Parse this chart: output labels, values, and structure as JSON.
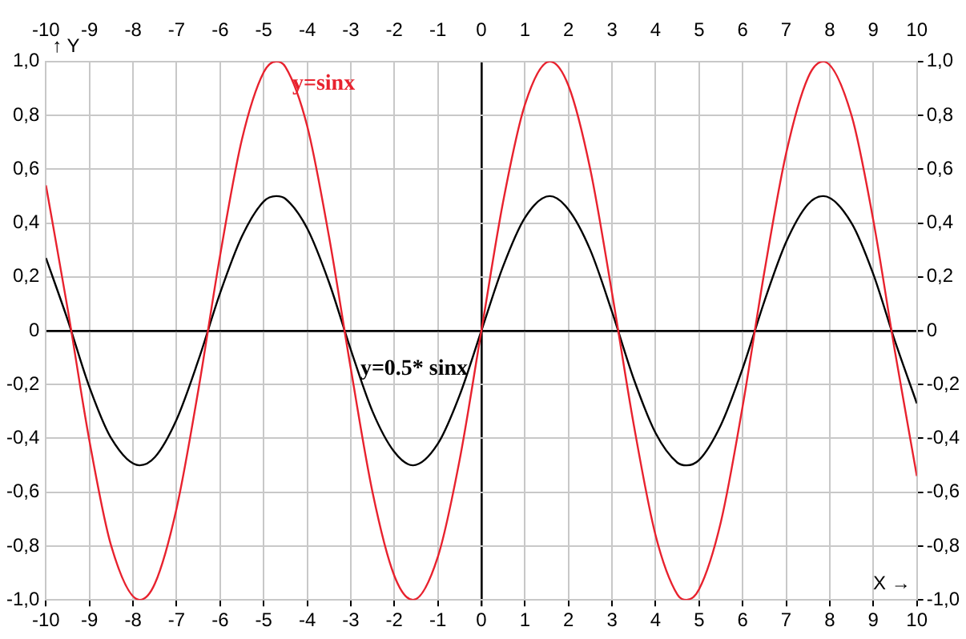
{
  "chart_data": {
    "type": "line",
    "xlabel": "X →",
    "ylabel": "↑ Y",
    "series": [
      {
        "name": "y=sinx",
        "color": "#e8222e",
        "x": [
          -10,
          -9.5,
          -9,
          -8.5,
          -7.85,
          -7.5,
          -7,
          -6.5,
          -6,
          -5.5,
          -5,
          -4.71,
          -4.5,
          -4,
          -3.5,
          -3,
          -2.5,
          -2,
          -1.57,
          -1,
          -0.5,
          0,
          0.5,
          1,
          1.57,
          2,
          2.5,
          3,
          3.5,
          4,
          4.5,
          4.71,
          5,
          5.5,
          6,
          6.5,
          7,
          7.5,
          7.85,
          8.5,
          9,
          9.5,
          10
        ],
        "values": [
          0.54,
          0.08,
          -0.41,
          -0.8,
          -1,
          -0.94,
          -0.66,
          -0.22,
          0.28,
          0.71,
          0.96,
          1,
          0.98,
          0.76,
          0.35,
          -0.14,
          -0.6,
          -0.91,
          -1,
          -0.84,
          -0.48,
          0,
          0.48,
          0.84,
          1,
          0.91,
          0.6,
          0.14,
          -0.35,
          -0.76,
          -0.98,
          -1,
          -0.96,
          -0.71,
          -0.28,
          0.22,
          0.66,
          0.94,
          1,
          0.8,
          0.41,
          -0.08,
          -0.54
        ]
      },
      {
        "name": "y=0.5* sinx",
        "color": "#000000",
        "x": [
          -10,
          -9.5,
          -9,
          -8.5,
          -7.85,
          -7.5,
          -7,
          -6.5,
          -6,
          -5.5,
          -5,
          -4.71,
          -4.5,
          -4,
          -3.5,
          -3,
          -2.5,
          -2,
          -1.57,
          -1,
          -0.5,
          0,
          0.5,
          1,
          1.57,
          2,
          2.5,
          3,
          3.5,
          4,
          4.5,
          4.71,
          5,
          5.5,
          6,
          6.5,
          7,
          7.5,
          7.85,
          8.5,
          9,
          9.5,
          10
        ],
        "values": [
          0.27,
          0.04,
          -0.21,
          -0.4,
          -0.5,
          -0.47,
          -0.33,
          -0.11,
          0.14,
          0.35,
          0.48,
          0.5,
          0.49,
          0.38,
          0.18,
          -0.07,
          -0.3,
          -0.45,
          -0.5,
          -0.42,
          -0.24,
          0,
          0.24,
          0.42,
          0.5,
          0.45,
          0.3,
          0.07,
          -0.18,
          -0.38,
          -0.49,
          -0.5,
          -0.48,
          -0.35,
          -0.14,
          0.11,
          0.33,
          0.47,
          0.5,
          0.4,
          0.21,
          -0.04,
          -0.27
        ]
      }
    ],
    "xlim": [
      -10,
      10
    ],
    "xticks": [
      -10,
      -9,
      -8,
      -7,
      -6,
      -5,
      -4,
      -3,
      -2,
      -1,
      0,
      1,
      2,
      3,
      4,
      5,
      6,
      7,
      8,
      9,
      10
    ],
    "x2lim": [
      -10,
      10
    ],
    "x2ticks": [
      -10,
      -9,
      -8,
      -7,
      -6,
      -5,
      -4,
      -3,
      -2,
      -1,
      0,
      1,
      2,
      3,
      4,
      5,
      6,
      7,
      8,
      9,
      10
    ],
    "ylim": [
      -1,
      1
    ],
    "yticks": [
      {
        "value": -1,
        "label": "-1,0"
      },
      {
        "value": -0.8,
        "label": "-0,8"
      },
      {
        "value": -0.6,
        "label": "-0,6"
      },
      {
        "value": -0.4,
        "label": "-0,4"
      },
      {
        "value": -0.2,
        "label": "-0,2"
      },
      0,
      {
        "value": 0.2,
        "label": "0,2"
      },
      {
        "value": 0.4,
        "label": "0,4"
      },
      {
        "value": 0.6,
        "label": "0,6"
      },
      {
        "value": 0.8,
        "label": "0,8"
      },
      {
        "value": 1,
        "label": "1,0"
      }
    ],
    "y2lim": [
      -1,
      1
    ],
    "y2ticks": [
      {
        "value": -1,
        "label": "-1,0"
      },
      {
        "value": -0.8,
        "label": "-0,8"
      },
      {
        "value": -0.6,
        "label": "-0,6"
      },
      {
        "value": -0.4,
        "label": "-0,4"
      },
      {
        "value": -0.2,
        "label": "-0,2"
      },
      0,
      {
        "value": 0.2,
        "label": "0,2"
      },
      {
        "value": 0.4,
        "label": "0,4"
      },
      {
        "value": 0.6,
        "label": "0,6"
      },
      {
        "value": 0.8,
        "label": "0,8"
      },
      {
        "value": 1,
        "label": "1,0"
      }
    ],
    "grid": true,
    "legend": false,
    "marker": "none",
    "line_style": "solid"
  }
}
